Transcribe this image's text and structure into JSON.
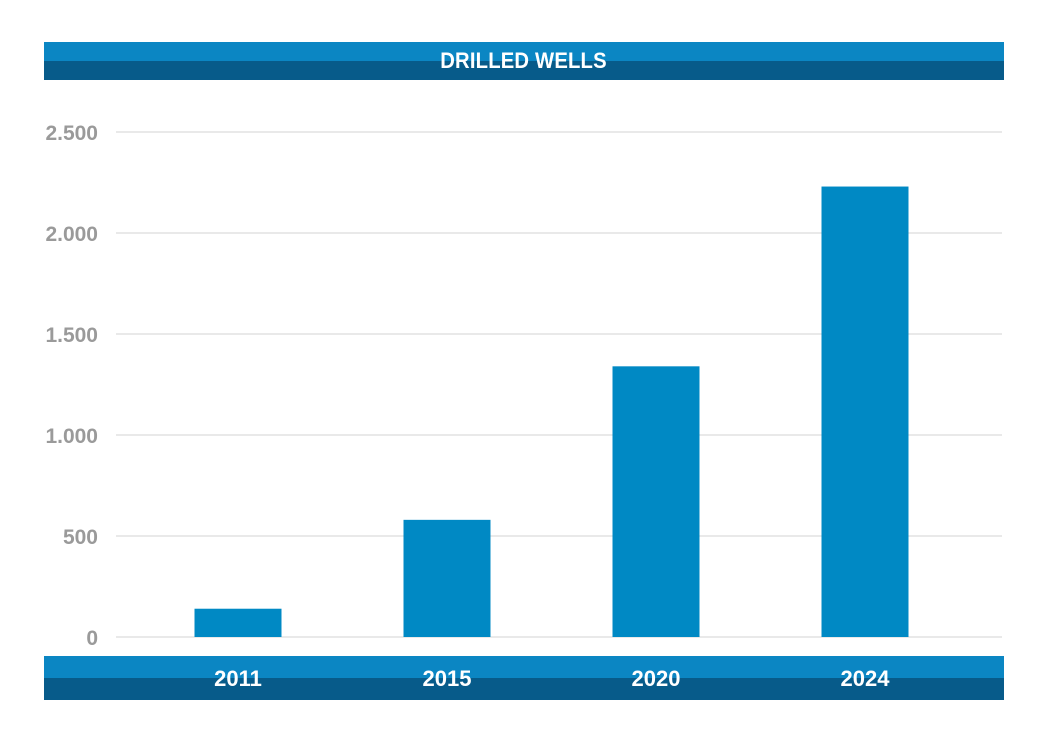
{
  "chart_data": {
    "type": "bar",
    "title": "DRILLED WELLS",
    "categories": [
      "2011",
      "2015",
      "2020",
      "2024"
    ],
    "values": [
      140,
      580,
      1340,
      2230
    ],
    "ylim": [
      0,
      2500
    ],
    "yticks": [
      0,
      500,
      1000,
      1500,
      2000,
      2500
    ],
    "ytick_labels": [
      "0",
      "500",
      "1.000",
      "1.500",
      "2.000",
      "2.500"
    ],
    "xlabel": "",
    "ylabel": "",
    "grid": true,
    "legend": "none",
    "colors": {
      "bar": "#0089c4",
      "bar_light": "#0b86c3",
      "bar_dark": "#075b8a",
      "grid": "#d3d3d3",
      "tick_text": "#9a9a9a"
    }
  }
}
